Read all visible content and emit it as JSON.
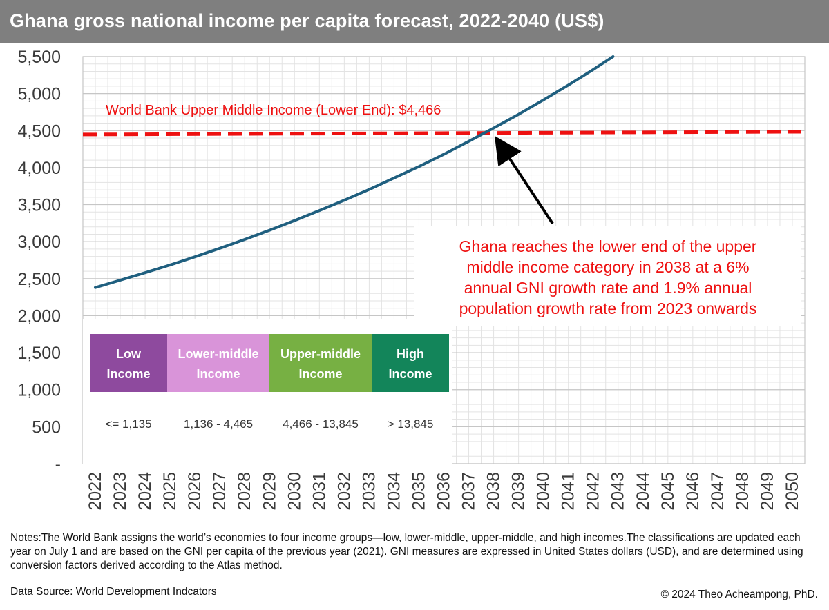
{
  "header": {
    "title": "Ghana gross national income per capita forecast, 2022-2040 (US$)"
  },
  "chart_data": {
    "type": "line",
    "title": "Ghana gross national income per capita forecast, 2022-2040 (US$)",
    "xlabel": "",
    "ylabel": "",
    "x": [
      2022,
      2023,
      2024,
      2025,
      2026,
      2027,
      2028,
      2029,
      2030,
      2031,
      2032,
      2033,
      2034,
      2035,
      2036,
      2037,
      2038,
      2039,
      2040,
      2041,
      2042,
      2043,
      2044,
      2045,
      2046,
      2047,
      2048,
      2049,
      2050
    ],
    "x_ticks": [
      "2022",
      "2023",
      "2024",
      "2025",
      "2026",
      "2027",
      "2028",
      "2029",
      "2030",
      "2031",
      "2032",
      "2033",
      "2034",
      "2035",
      "2036",
      "2037",
      "2038",
      "2039",
      "2040",
      "2041",
      "2042",
      "2043",
      "2044",
      "2045",
      "2046",
      "2047",
      "2048",
      "2049",
      "2050"
    ],
    "xlim": [
      2022,
      2050
    ],
    "ylim": [
      0,
      5500
    ],
    "y_ticks": [
      0,
      500,
      1000,
      1500,
      2000,
      2500,
      3000,
      3500,
      4000,
      4500,
      5000,
      5500
    ],
    "y_tick_labels": [
      "-",
      "500",
      "1,000",
      "1,500",
      "2,000",
      "2,500",
      "3,000",
      "3,500",
      "4,000",
      "4,500",
      "5,000",
      "5,500"
    ],
    "series": [
      {
        "name": "",
        "color": "#1f5f7f",
        "x": [
          2022,
          2023,
          2024,
          2025,
          2026,
          2027,
          2028,
          2029,
          2030,
          2031,
          2032,
          2033,
          2034,
          2035,
          2036,
          2037,
          2038,
          2039,
          2040,
          2041,
          2042,
          2043
        ],
        "values": [
          2380,
          2480,
          2580,
          2685,
          2795,
          2910,
          3030,
          3155,
          3285,
          3420,
          3560,
          3705,
          3860,
          4015,
          4180,
          4355,
          4535,
          4720,
          4915,
          5115,
          5325,
          5545
        ]
      }
    ],
    "reference_line": {
      "value": 4466,
      "color": "#ee1111",
      "style": "dashed",
      "label": "World Bank Upper Middle Income (Lower End): $4,466"
    },
    "annotation": {
      "lines": [
        "Ghana reaches the lower end of the upper",
        "middle income category in 2038 at a 6%",
        "annual GNI growth rate and 1.9% annual",
        "population growth rate from 2023 onwards"
      ],
      "color": "#ee1111",
      "points_to_x": 2038,
      "points_to_y": 4466
    },
    "grid": true,
    "legend": "none"
  },
  "income_table": {
    "categories": [
      {
        "line1": "Low",
        "line2": "Income",
        "range": "<= 1,135",
        "color": "#8e4a9e"
      },
      {
        "line1": "Lower-middle",
        "line2": "Income",
        "range": "1,136 - 4,465",
        "color": "#d994d9"
      },
      {
        "line1": "Upper-middle",
        "line2": "Income",
        "range": "4,466 - 13,845",
        "color": "#77b043"
      },
      {
        "line1": "High",
        "line2": "Income",
        "range": "> 13,845",
        "color": "#13855a"
      }
    ]
  },
  "footer": {
    "notes": "Notes:The World Bank assigns the world’s economies to four income groups—low, lower-middle, upper-middle, and high incomes.The classifications are updated each year on July 1 and are based on the GNI per capita of the previous year (2021). GNI measures are expressed in United States dollars (USD), and are determined using conversion factors derived according to the Atlas method.",
    "source": "Data Source: World Development  Indcators",
    "copyright": "© 2024 Theo Acheampong, PhD."
  }
}
